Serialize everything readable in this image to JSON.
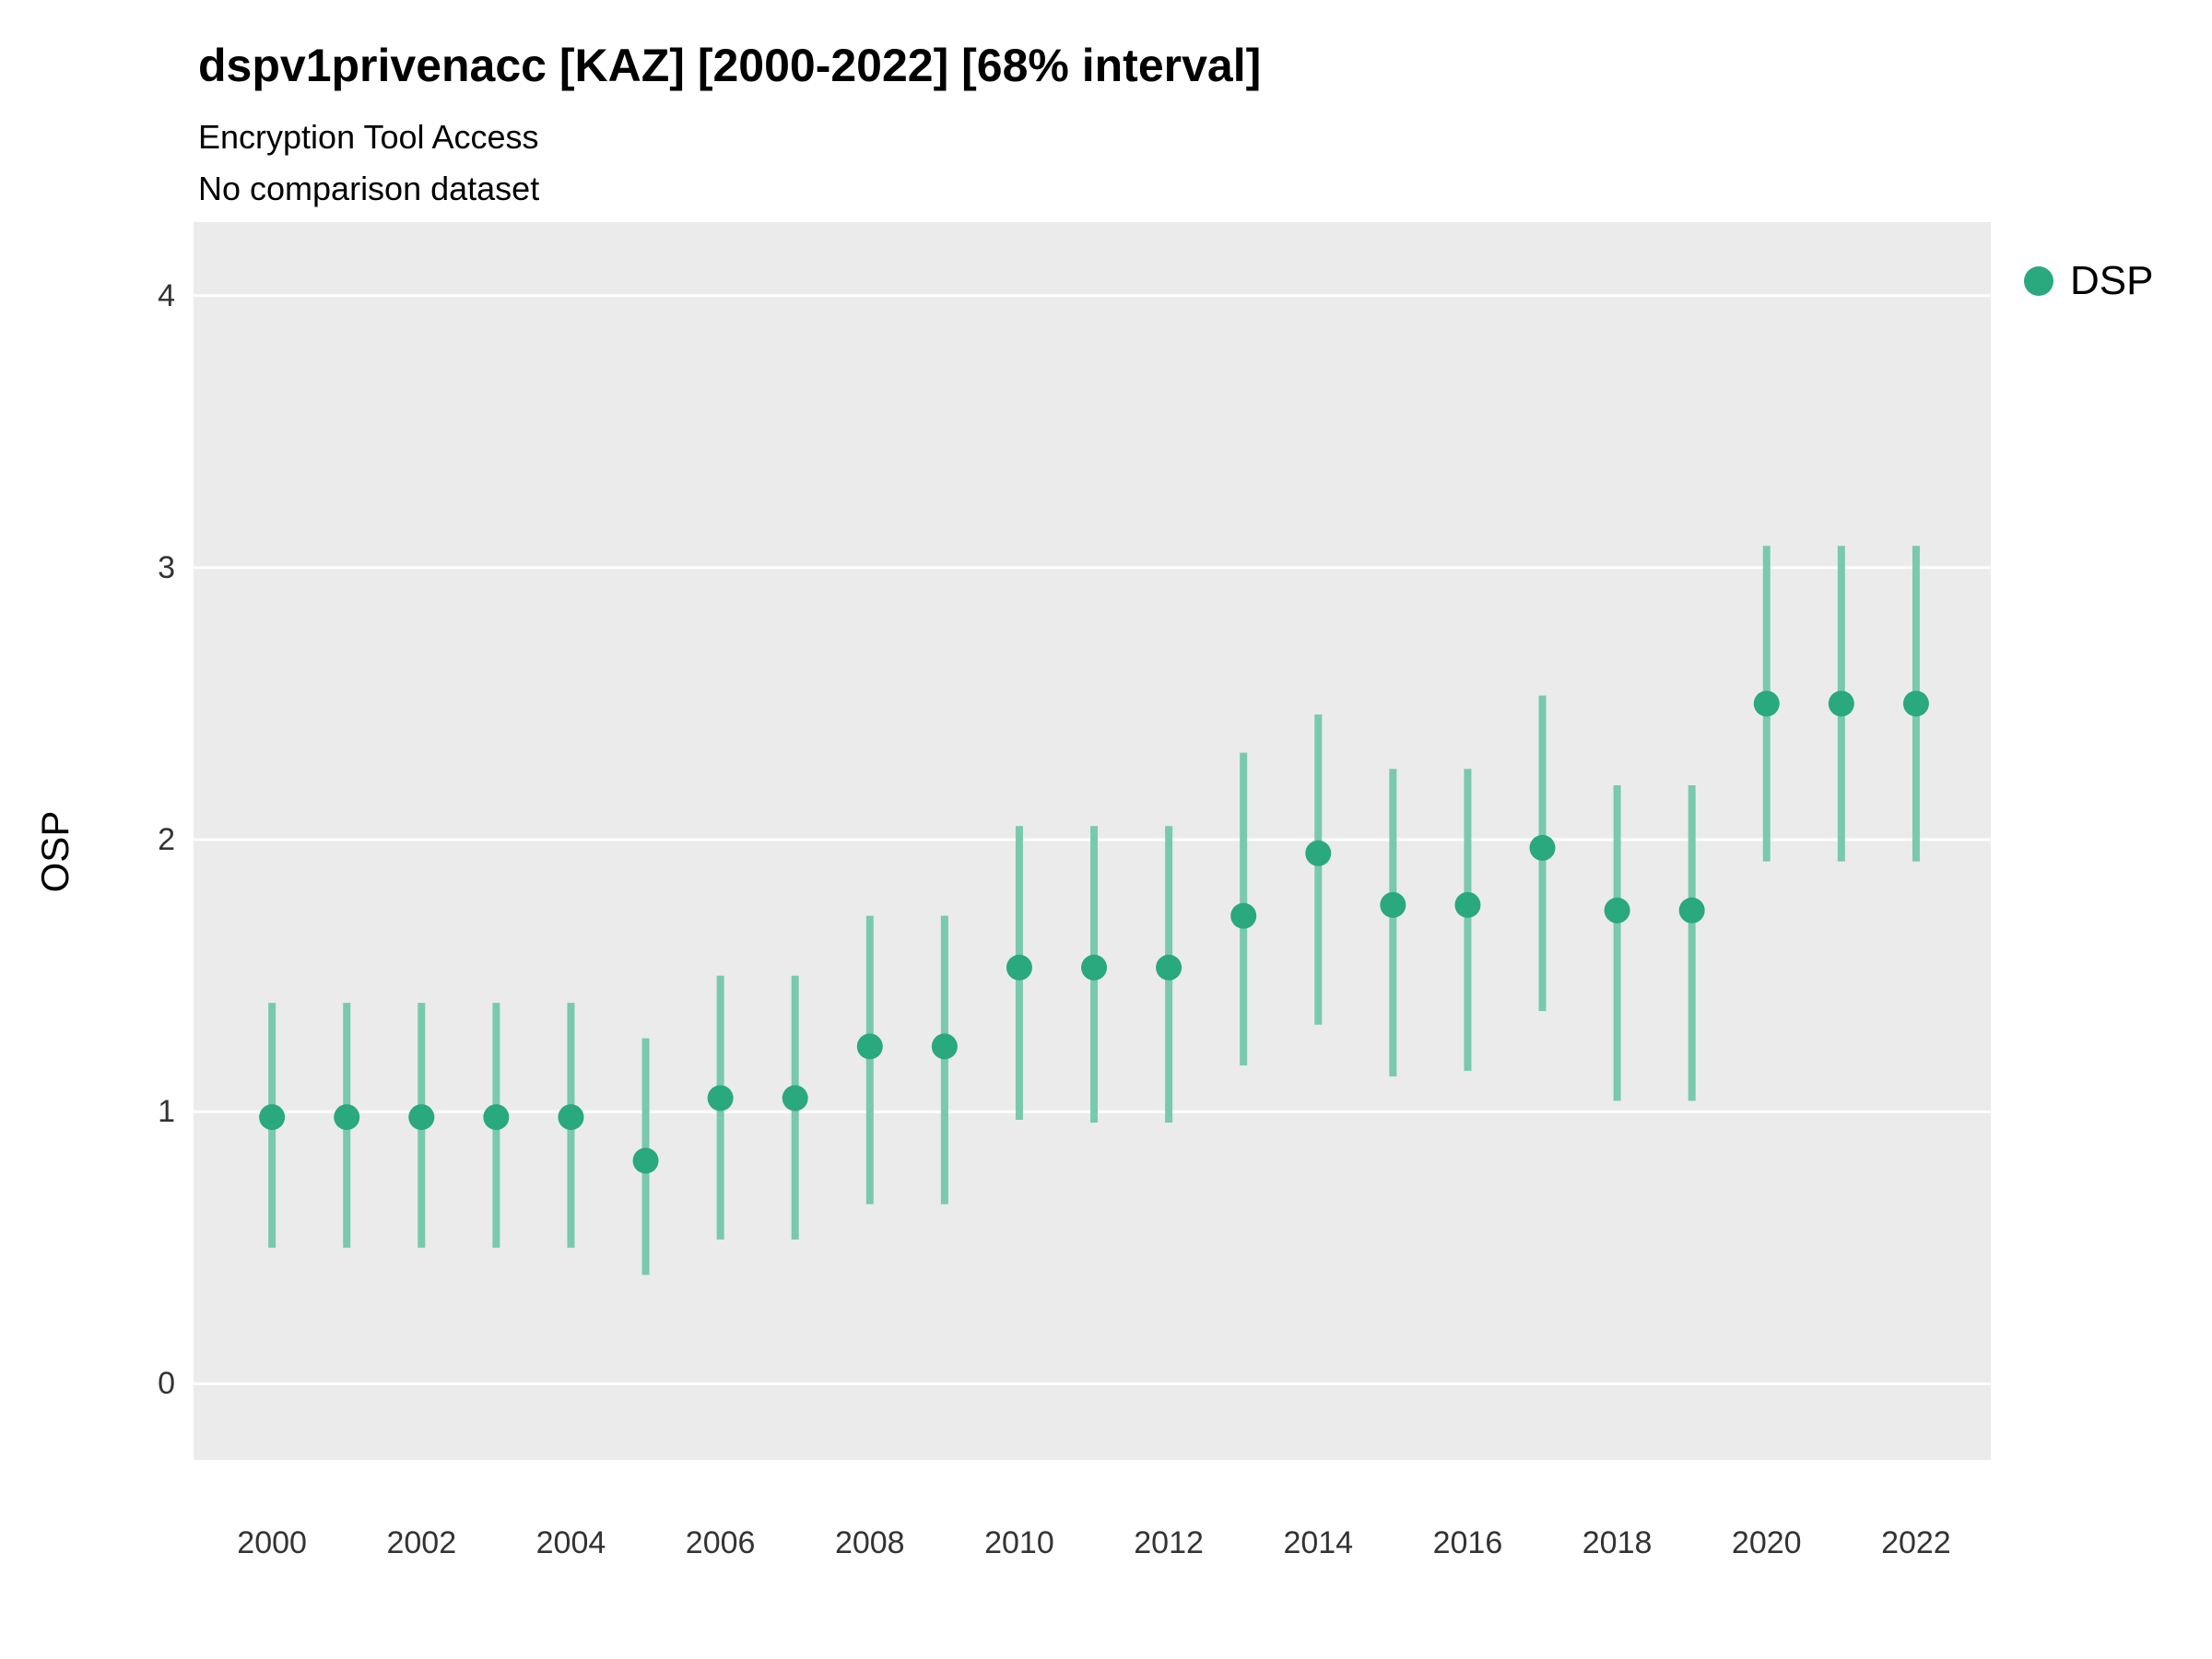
{
  "header": {
    "title": "dspv1privenacc [KAZ] [2000-2022] [68% interval]",
    "subtitle1": "Encryption Tool Access",
    "subtitle2": "No comparison dataset"
  },
  "legend": {
    "items": [
      {
        "label": "DSP",
        "color": "#2aa87e"
      }
    ]
  },
  "chart_data": {
    "type": "scatter",
    "title": "dspv1privenacc [KAZ] [2000-2022] [68% interval]",
    "subtitle": "Encryption Tool Access",
    "caption": "No comparison dataset",
    "xlabel": "",
    "ylabel": "OSP",
    "x": [
      2000,
      2001,
      2002,
      2003,
      2004,
      2005,
      2006,
      2007,
      2008,
      2009,
      2010,
      2011,
      2012,
      2013,
      2014,
      2015,
      2016,
      2017,
      2018,
      2019,
      2020,
      2021,
      2022
    ],
    "series": [
      {
        "name": "DSP",
        "values": [
          0.98,
          0.98,
          0.98,
          0.98,
          0.98,
          0.82,
          1.05,
          1.05,
          1.24,
          1.24,
          1.53,
          1.53,
          1.53,
          1.72,
          1.95,
          1.76,
          1.76,
          1.97,
          1.74,
          1.74,
          2.5,
          2.5,
          2.5
        ],
        "lower": [
          0.5,
          0.5,
          0.5,
          0.5,
          0.5,
          0.4,
          0.53,
          0.53,
          0.66,
          0.66,
          0.97,
          0.96,
          0.96,
          1.17,
          1.32,
          1.13,
          1.15,
          1.37,
          1.04,
          1.04,
          1.92,
          1.92,
          1.92
        ],
        "upper": [
          1.4,
          1.4,
          1.4,
          1.4,
          1.4,
          1.27,
          1.5,
          1.5,
          1.72,
          1.72,
          2.05,
          2.05,
          2.05,
          2.32,
          2.46,
          2.26,
          2.26,
          2.53,
          2.2,
          2.2,
          3.08,
          3.08,
          3.08
        ]
      }
    ],
    "interval_label": "68% interval",
    "ylim": [
      -0.28,
      4.27
    ],
    "xlim": [
      1998.95,
      2023.0
    ],
    "yticks": [
      0,
      1,
      2,
      3,
      4
    ],
    "xticks": [
      2000,
      2002,
      2004,
      2006,
      2008,
      2010,
      2012,
      2014,
      2016,
      2018,
      2020,
      2022
    ],
    "grid": true,
    "legend_position": "right",
    "point_color": "#2aa87e",
    "errorbar_color": "#79c9ad",
    "panel_background": "#ebebeb",
    "gridline_color": "#ffffff"
  }
}
